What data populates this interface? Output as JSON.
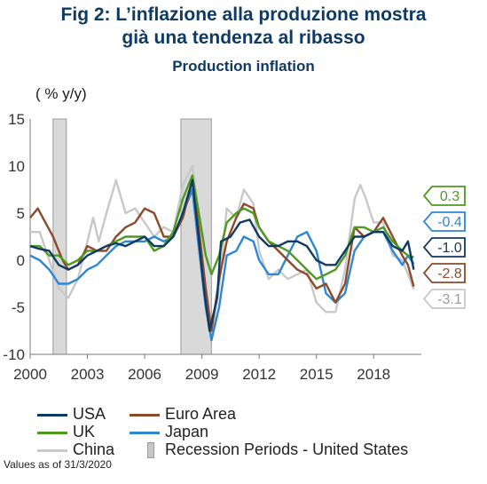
{
  "header": {
    "title_line1": "Fig 2: L’inflazione alla produzione mostra",
    "title_line2": "già una tendenza al ribasso",
    "subtitle": "Production inflation",
    "unit_label": "( % y/y)"
  },
  "footnote": "Values as of 31/3/2020",
  "chart_data": {
    "type": "line",
    "title": "Production inflation",
    "ylabel": "( % y/y)",
    "ylim": [
      -10,
      15
    ],
    "xlim": [
      2000,
      2020.5
    ],
    "y_ticks": [
      "15",
      "10",
      "5",
      "0",
      "-5",
      "-10"
    ],
    "x_ticks": [
      "2000",
      "2003",
      "2006",
      "2009",
      "2012",
      "2015",
      "2018"
    ],
    "grid": false,
    "legend_position": "bottom",
    "recessions": [
      {
        "start": 2001.2,
        "end": 2001.9
      },
      {
        "start": 2007.9,
        "end": 2009.5
      }
    ],
    "recession_label": "Recession Periods - United States",
    "series": [
      {
        "name": "USA",
        "color": "#0f3a63",
        "last_value": "-1.0",
        "points": [
          [
            2000,
            1.5
          ],
          [
            2000.5,
            1.2
          ],
          [
            2001,
            1.0
          ],
          [
            2001.5,
            -0.5
          ],
          [
            2002,
            -1.0
          ],
          [
            2002.5,
            -0.5
          ],
          [
            2003,
            0.5
          ],
          [
            2003.5,
            1.0
          ],
          [
            2004,
            1.5
          ],
          [
            2004.5,
            1.8
          ],
          [
            2005,
            1.5
          ],
          [
            2005.5,
            2.0
          ],
          [
            2006,
            2.5
          ],
          [
            2006.5,
            1.5
          ],
          [
            2007,
            1.5
          ],
          [
            2007.5,
            2.5
          ],
          [
            2008,
            5.0
          ],
          [
            2008.5,
            8.5
          ],
          [
            2008.8,
            3.0
          ],
          [
            2009.1,
            -3.0
          ],
          [
            2009.4,
            -7.5
          ],
          [
            2009.8,
            -4.0
          ],
          [
            2010,
            2.0
          ],
          [
            2010.5,
            2.5
          ],
          [
            2011,
            4.0
          ],
          [
            2011.5,
            4.3
          ],
          [
            2012,
            2.5
          ],
          [
            2012.5,
            1.5
          ],
          [
            2013,
            1.5
          ],
          [
            2013.5,
            2.0
          ],
          [
            2014,
            2.0
          ],
          [
            2014.5,
            1.5
          ],
          [
            2015,
            0.0
          ],
          [
            2015.5,
            -0.5
          ],
          [
            2016,
            -0.5
          ],
          [
            2016.5,
            1.0
          ],
          [
            2017,
            2.5
          ],
          [
            2017.5,
            2.5
          ],
          [
            2018,
            3.0
          ],
          [
            2018.5,
            3.0
          ],
          [
            2019,
            1.5
          ],
          [
            2019.5,
            1.0
          ],
          [
            2019.8,
            2.0
          ],
          [
            2020.1,
            -1.0
          ]
        ]
      },
      {
        "name": "Euro Area",
        "color": "#8b4a2b",
        "last_value": "-2.8",
        "points": [
          [
            2000,
            4.5
          ],
          [
            2000.4,
            5.5
          ],
          [
            2000.8,
            4.0
          ],
          [
            2001.2,
            2.5
          ],
          [
            2001.7,
            0.0
          ],
          [
            2002,
            -1.0
          ],
          [
            2002.5,
            -0.5
          ],
          [
            2003,
            1.5
          ],
          [
            2003.5,
            1.0
          ],
          [
            2004,
            1.0
          ],
          [
            2004.5,
            2.5
          ],
          [
            2005,
            3.5
          ],
          [
            2005.5,
            4.0
          ],
          [
            2006,
            5.5
          ],
          [
            2006.5,
            5.0
          ],
          [
            2007,
            2.5
          ],
          [
            2007.5,
            2.5
          ],
          [
            2008,
            4.5
          ],
          [
            2008.5,
            8.5
          ],
          [
            2008.8,
            4.0
          ],
          [
            2009.2,
            -3.0
          ],
          [
            2009.5,
            -7.5
          ],
          [
            2009.9,
            -2.0
          ],
          [
            2010.3,
            2.0
          ],
          [
            2010.8,
            4.5
          ],
          [
            2011.2,
            6.0
          ],
          [
            2011.7,
            5.5
          ],
          [
            2012,
            3.5
          ],
          [
            2012.5,
            2.0
          ],
          [
            2013,
            1.0
          ],
          [
            2013.5,
            0.0
          ],
          [
            2014,
            -1.0
          ],
          [
            2014.5,
            -1.5
          ],
          [
            2015,
            -3.0
          ],
          [
            2015.5,
            -2.5
          ],
          [
            2016,
            -4.5
          ],
          [
            2016.5,
            -2.5
          ],
          [
            2017,
            3.5
          ],
          [
            2017.5,
            2.5
          ],
          [
            2018,
            3.0
          ],
          [
            2018.5,
            4.5
          ],
          [
            2019,
            2.5
          ],
          [
            2019.5,
            0.5
          ],
          [
            2019.8,
            -0.5
          ],
          [
            2020.1,
            -2.8
          ]
        ]
      },
      {
        "name": "UK",
        "color": "#4d9a1f",
        "last_value": "0.3",
        "points": [
          [
            2000,
            1.5
          ],
          [
            2000.5,
            1.5
          ],
          [
            2001,
            0.5
          ],
          [
            2001.5,
            0.5
          ],
          [
            2002,
            -0.5
          ],
          [
            2002.5,
            0.0
          ],
          [
            2003,
            1.0
          ],
          [
            2003.5,
            1.0
          ],
          [
            2004,
            1.5
          ],
          [
            2004.5,
            2.0
          ],
          [
            2005,
            2.5
          ],
          [
            2005.5,
            2.5
          ],
          [
            2006,
            2.5
          ],
          [
            2006.5,
            1.0
          ],
          [
            2007,
            1.5
          ],
          [
            2007.5,
            3.0
          ],
          [
            2008,
            6.5
          ],
          [
            2008.5,
            9.0
          ],
          [
            2008.8,
            5.5
          ],
          [
            2009.2,
            0.5
          ],
          [
            2009.5,
            -1.5
          ],
          [
            2009.9,
            0.5
          ],
          [
            2010.3,
            4.0
          ],
          [
            2010.8,
            5.0
          ],
          [
            2011.2,
            5.5
          ],
          [
            2011.7,
            5.0
          ],
          [
            2012,
            3.5
          ],
          [
            2012.5,
            2.0
          ],
          [
            2013,
            1.5
          ],
          [
            2013.5,
            1.0
          ],
          [
            2014,
            0.0
          ],
          [
            2014.5,
            -1.0
          ],
          [
            2015,
            -2.0
          ],
          [
            2015.5,
            -1.5
          ],
          [
            2016,
            -1.0
          ],
          [
            2016.5,
            0.5
          ],
          [
            2017,
            3.5
          ],
          [
            2017.5,
            3.5
          ],
          [
            2018,
            3.0
          ],
          [
            2018.5,
            3.5
          ],
          [
            2019,
            2.0
          ],
          [
            2019.5,
            1.0
          ],
          [
            2019.8,
            0.5
          ],
          [
            2020.1,
            0.3
          ]
        ]
      },
      {
        "name": "Japan",
        "color": "#2e86d4",
        "last_value": "-0.4",
        "points": [
          [
            2000,
            0.5
          ],
          [
            2000.5,
            0.0
          ],
          [
            2001,
            -1.0
          ],
          [
            2001.5,
            -2.5
          ],
          [
            2002,
            -2.5
          ],
          [
            2002.5,
            -2.0
          ],
          [
            2003,
            -1.0
          ],
          [
            2003.5,
            -0.5
          ],
          [
            2004,
            0.5
          ],
          [
            2004.5,
            1.5
          ],
          [
            2005,
            2.0
          ],
          [
            2005.5,
            2.0
          ],
          [
            2006,
            2.0
          ],
          [
            2006.5,
            2.5
          ],
          [
            2007,
            2.0
          ],
          [
            2007.5,
            2.5
          ],
          [
            2008,
            5.0
          ],
          [
            2008.5,
            7.5
          ],
          [
            2008.8,
            2.0
          ],
          [
            2009.2,
            -5.0
          ],
          [
            2009.5,
            -8.5
          ],
          [
            2009.9,
            -5.0
          ],
          [
            2010.3,
            0.5
          ],
          [
            2010.8,
            1.0
          ],
          [
            2011.2,
            2.5
          ],
          [
            2011.7,
            2.0
          ],
          [
            2012,
            0.0
          ],
          [
            2012.5,
            -1.5
          ],
          [
            2013,
            -1.5
          ],
          [
            2013.5,
            0.5
          ],
          [
            2014,
            2.5
          ],
          [
            2014.5,
            3.0
          ],
          [
            2015,
            1.0
          ],
          [
            2015.5,
            -3.5
          ],
          [
            2016,
            -4.5
          ],
          [
            2016.5,
            -3.5
          ],
          [
            2017,
            1.0
          ],
          [
            2017.5,
            2.5
          ],
          [
            2018,
            3.0
          ],
          [
            2018.5,
            3.0
          ],
          [
            2019,
            1.0
          ],
          [
            2019.5,
            -0.5
          ],
          [
            2019.8,
            0.5
          ],
          [
            2020.1,
            -0.4
          ]
        ]
      },
      {
        "name": "China",
        "color": "#c8c8c8",
        "last_value": "-3.1",
        "points": [
          [
            2000,
            3.0
          ],
          [
            2000.5,
            3.0
          ],
          [
            2001,
            0.0
          ],
          [
            2001.5,
            -3.0
          ],
          [
            2002,
            -4.0
          ],
          [
            2002.5,
            -2.0
          ],
          [
            2003,
            2.0
          ],
          [
            2003.3,
            4.5
          ],
          [
            2003.6,
            2.0
          ],
          [
            2004,
            5.0
          ],
          [
            2004.5,
            8.5
          ],
          [
            2005,
            5.0
          ],
          [
            2005.5,
            5.5
          ],
          [
            2006,
            4.0
          ],
          [
            2006.5,
            2.5
          ],
          [
            2007,
            3.5
          ],
          [
            2007.5,
            3.0
          ],
          [
            2008,
            8.0
          ],
          [
            2008.5,
            10.0
          ],
          [
            2008.8,
            5.0
          ],
          [
            2009.2,
            -3.0
          ],
          [
            2009.5,
            -8.0
          ],
          [
            2009.9,
            -3.0
          ],
          [
            2010.3,
            5.5
          ],
          [
            2010.8,
            4.5
          ],
          [
            2011.2,
            7.5
          ],
          [
            2011.7,
            6.0
          ],
          [
            2012,
            1.0
          ],
          [
            2012.5,
            -2.0
          ],
          [
            2013,
            -1.0
          ],
          [
            2013.5,
            -2.0
          ],
          [
            2014,
            -1.5
          ],
          [
            2014.5,
            -1.0
          ],
          [
            2015,
            -4.5
          ],
          [
            2015.5,
            -5.5
          ],
          [
            2016,
            -5.5
          ],
          [
            2016.5,
            -1.0
          ],
          [
            2017,
            6.5
          ],
          [
            2017.3,
            8.0
          ],
          [
            2017.6,
            6.5
          ],
          [
            2018,
            4.0
          ],
          [
            2018.5,
            4.0
          ],
          [
            2019,
            0.5
          ],
          [
            2019.5,
            0.0
          ],
          [
            2019.8,
            -1.5
          ],
          [
            2020.1,
            -3.1
          ]
        ]
      }
    ]
  }
}
